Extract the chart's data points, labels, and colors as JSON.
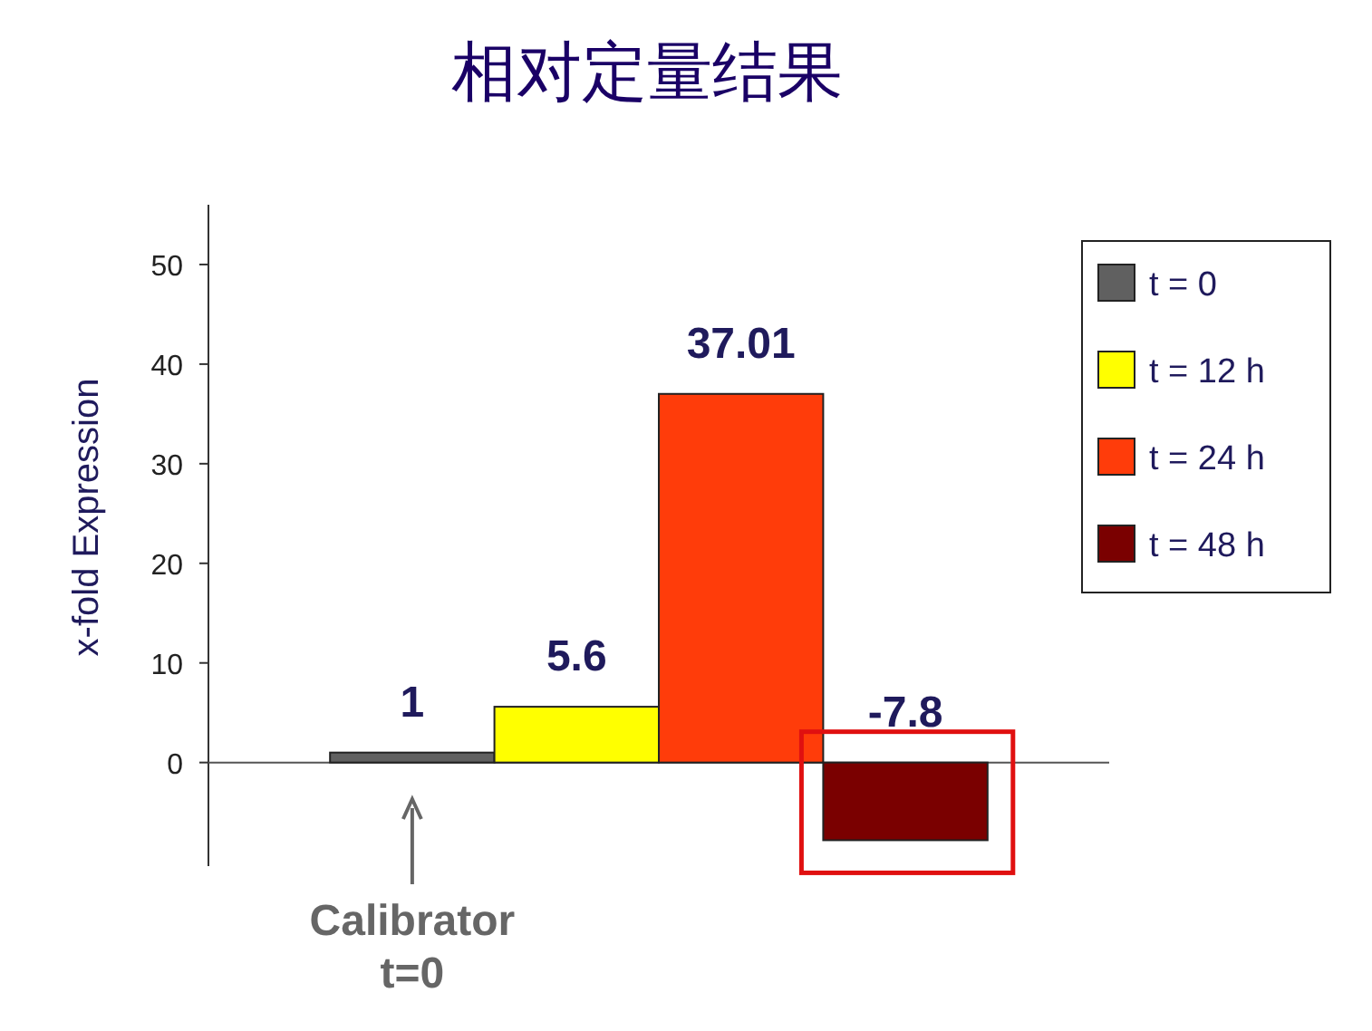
{
  "chart_data": {
    "type": "bar",
    "title": "相对定量结果",
    "ylabel": "x-fold Expression",
    "categories": [
      null
    ],
    "series": [
      {
        "name": "t = 0",
        "color": "#606060",
        "values": [
          1
        ]
      },
      {
        "name": "t = 12 h",
        "color": "#ffff00",
        "values": [
          5.6
        ]
      },
      {
        "name": "t = 24 h",
        "color": "#ff3c0a",
        "values": [
          37.01
        ]
      },
      {
        "name": "t = 48 h",
        "color": "#7a0000",
        "values": [
          -7.8
        ]
      }
    ],
    "ylim": [
      -10.4,
      56
    ],
    "yticks": [
      0,
      10,
      20,
      30,
      40,
      50
    ],
    "data_labels": true,
    "legend": "top right",
    "annotations": [
      "Calibrator\nt=0"
    ]
  }
}
